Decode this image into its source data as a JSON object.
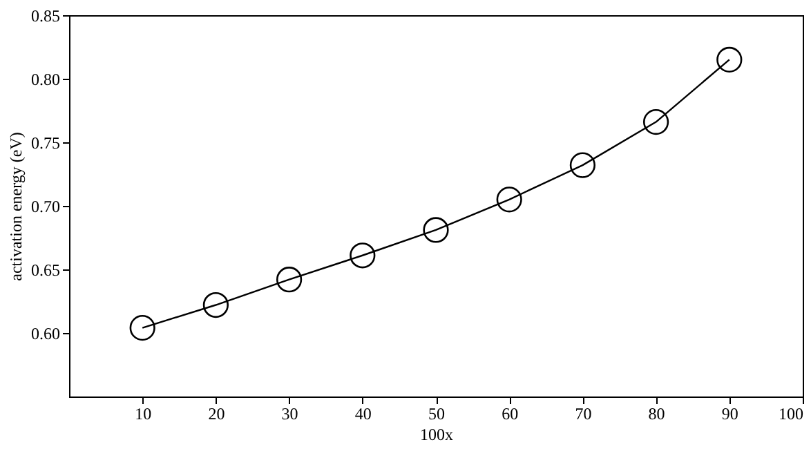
{
  "chart_data": {
    "type": "line",
    "xlabel": "100x",
    "ylabel": "activation energy (eV)",
    "x": [
      10,
      20,
      30,
      40,
      50,
      60,
      70,
      80,
      90
    ],
    "series": [
      {
        "color": "#000000",
        "values": [
          0.604,
          0.622,
          0.642,
          0.661,
          0.681,
          0.705,
          0.732,
          0.766,
          0.815
        ]
      }
    ],
    "xlim": [
      0,
      100
    ],
    "xticks": [
      10,
      20,
      30,
      40,
      50,
      60,
      70,
      80,
      90,
      100
    ],
    "ylim": [
      0.55,
      0.85
    ],
    "yticks": [
      {
        "value": 0.6,
        "label": "0.60"
      },
      0.65,
      {
        "value": 0.7,
        "label": "0.70"
      },
      0.75,
      {
        "value": 0.8,
        "label": "0.80"
      },
      0.85
    ],
    "marker": "circle",
    "line_style": "solid",
    "grid": false,
    "legend": false
  }
}
